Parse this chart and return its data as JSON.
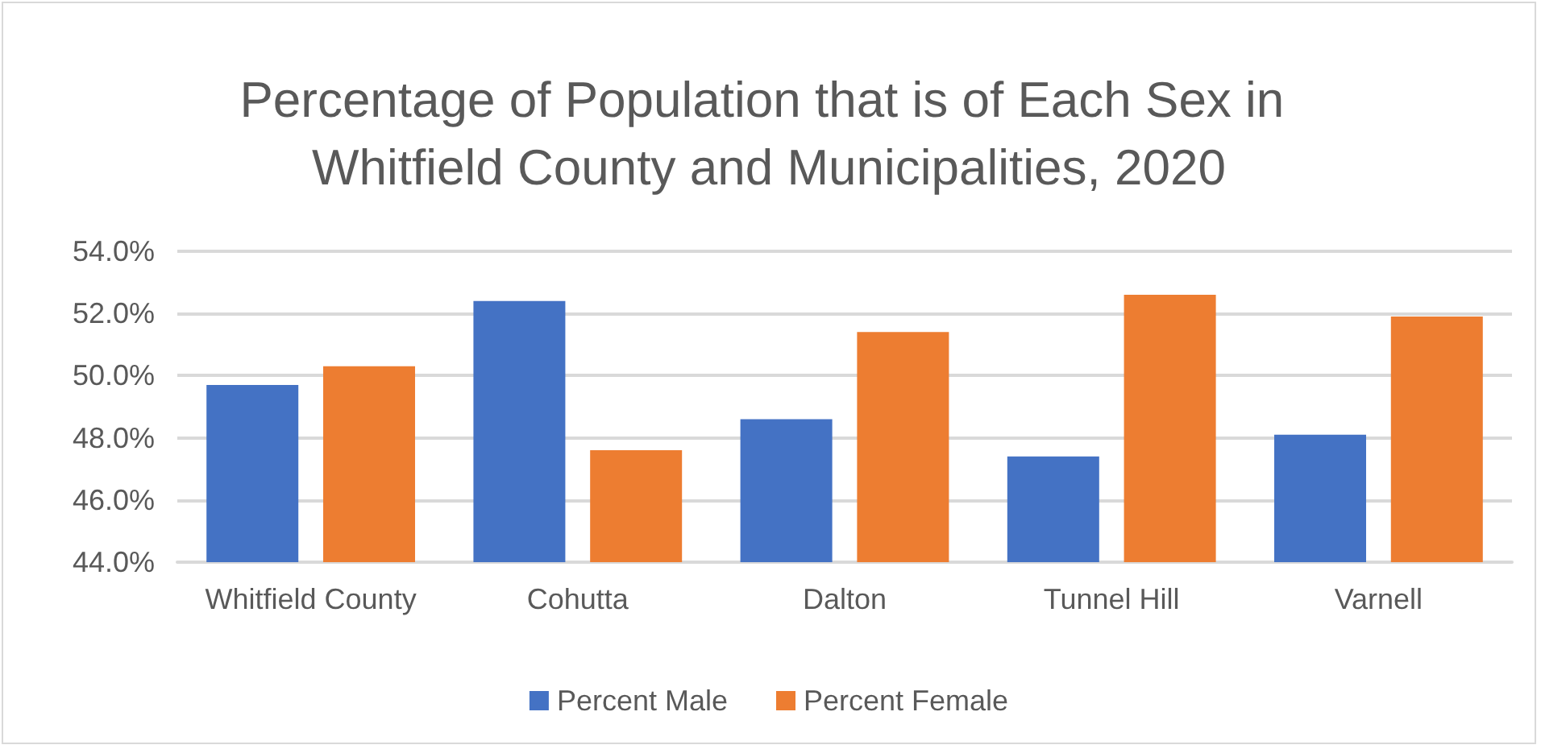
{
  "chart_data": {
    "type": "bar",
    "title": "Percentage of Population that is of Each Sex in Whitfield County and Municipalities, 2020",
    "categories": [
      "Whitfield County",
      "Cohutta",
      "Dalton",
      "Tunnel Hill",
      "Varnell"
    ],
    "series": [
      {
        "name": "Percent Male",
        "color": "#4472c4",
        "values": [
          49.7,
          52.4,
          48.6,
          47.4,
          48.1
        ]
      },
      {
        "name": "Percent Female",
        "color": "#ed7d31",
        "values": [
          50.3,
          47.6,
          51.4,
          52.6,
          51.9
        ]
      }
    ],
    "ylim": [
      44,
      54
    ],
    "yticks": [
      {
        "value": 44,
        "label": "44.0%"
      },
      {
        "value": 46,
        "label": "46.0%"
      },
      {
        "value": 48,
        "label": "48.0%"
      },
      {
        "value": 50,
        "label": "50.0%"
      },
      {
        "value": 52,
        "label": "52.0%"
      },
      {
        "value": 54,
        "label": "54.0%"
      }
    ],
    "grid": "y",
    "legend": "bottom"
  }
}
